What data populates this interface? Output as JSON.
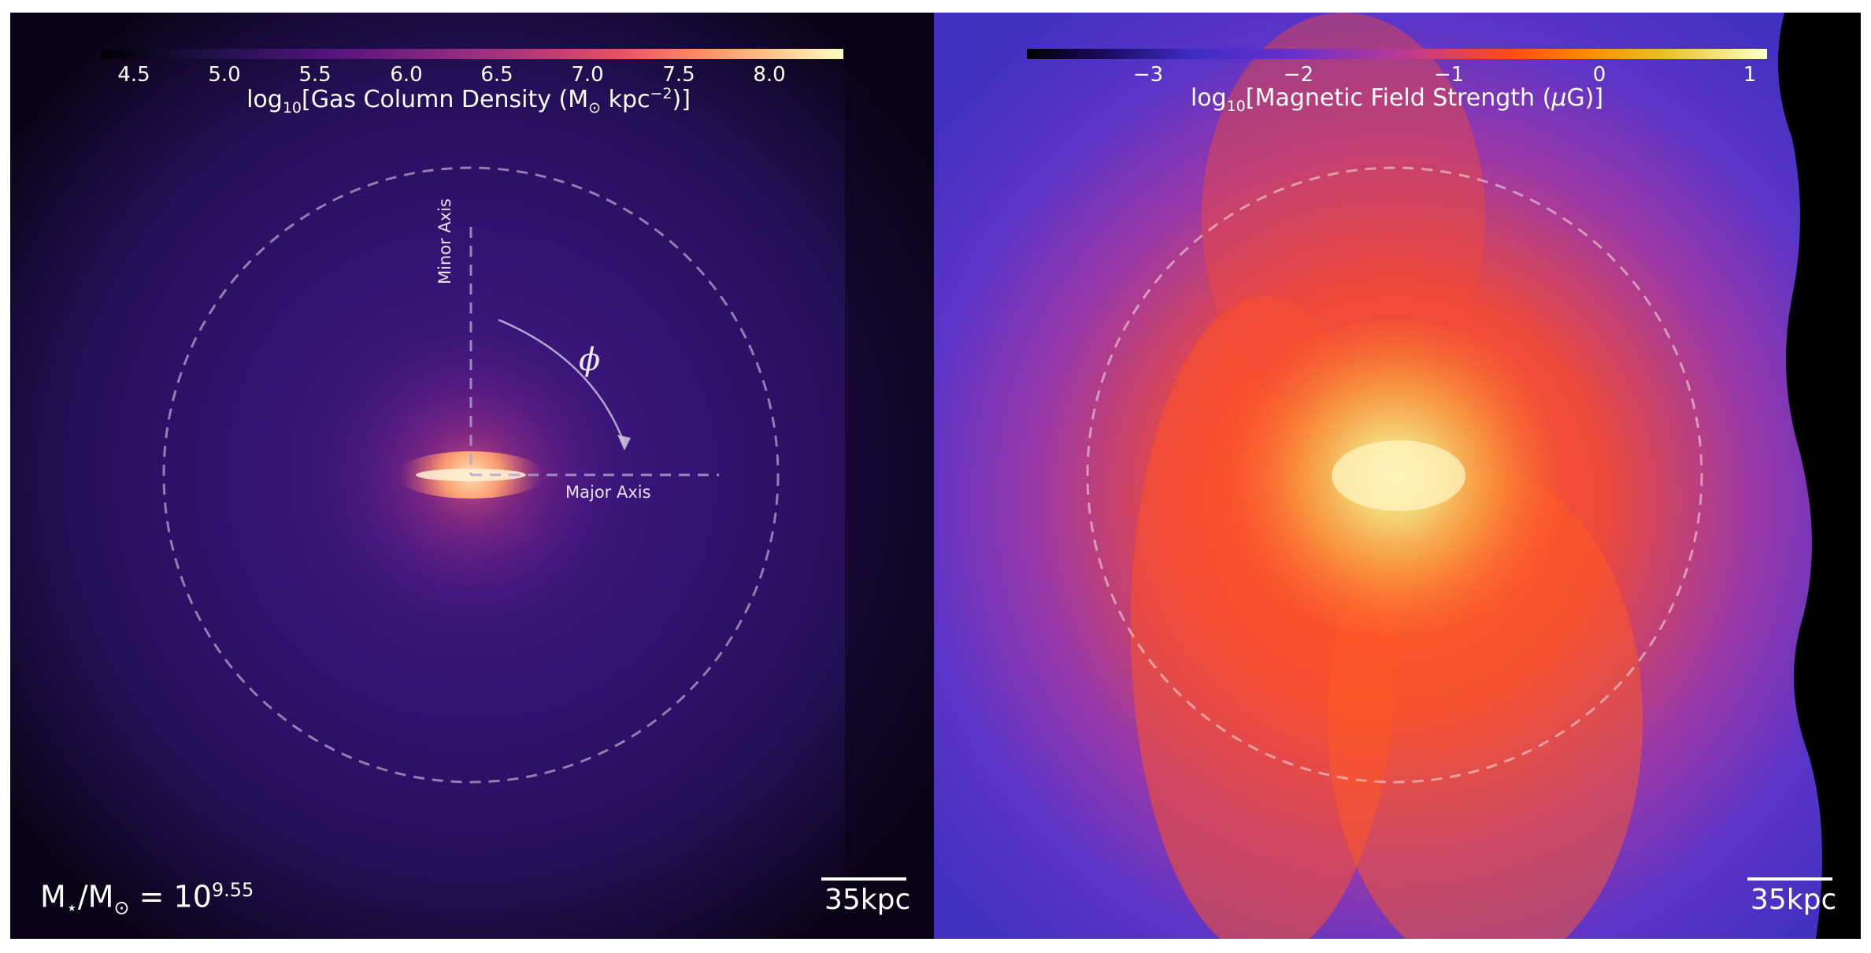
{
  "left_panel": {
    "colorbar": {
      "ticks": [
        "4.5",
        "5.0",
        "5.5",
        "6.0",
        "6.5",
        "7.0",
        "7.5",
        "8.0"
      ],
      "label_prefix": "log",
      "label_sub": "10",
      "label_main": "[Gas Column Density (M",
      "label_sun": "⊙",
      "label_unit": " kpc",
      "label_exp": "−2",
      "label_end": ")]",
      "colormap": "magma"
    },
    "annotations": {
      "minor_axis": "Minor Axis",
      "major_axis": "Major Axis",
      "angle_symbol": "ϕ"
    },
    "scalebar_label": "35kpc",
    "stellar_mass": {
      "prefix": "M",
      "star_sub": "⋆",
      "slash": "/M",
      "sun_sub": "⊙",
      "equals": " = 10",
      "exponent": "9.55"
    }
  },
  "right_panel": {
    "colorbar": {
      "ticks": [
        "−3",
        "−2",
        "−1",
        "0",
        "1"
      ],
      "label_prefix": "log",
      "label_sub": "10",
      "label_main": "[Magnetic Field Strength (",
      "label_mu": "μ",
      "label_end": "G)]",
      "colormap": "cmr.ember"
    },
    "scalebar_label": "35kpc"
  }
}
